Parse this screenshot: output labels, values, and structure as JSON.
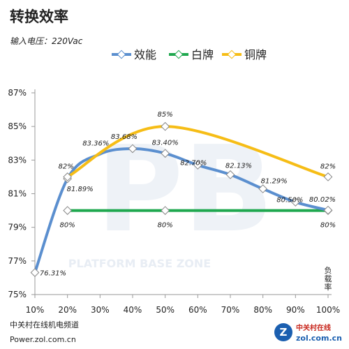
{
  "header": {
    "title": "转换效率",
    "subtitle": "输入电压：220Vac"
  },
  "footer": {
    "line1": "中关村在线机电频道",
    "line2": "Power.zol.com.cn",
    "logo_text_top": "中关村在线",
    "logo_text_bottom": "zol.com.cn",
    "logo_letter": "Z"
  },
  "watermark": {
    "text": "PLATFORM BASE ZONE",
    "big": "PB"
  },
  "chart_data": {
    "type": "line",
    "x": [
      10,
      20,
      30,
      40,
      50,
      60,
      70,
      80,
      90,
      100
    ],
    "categories": [
      "10%",
      "20%",
      "30%",
      "40%",
      "50%",
      "60%",
      "70%",
      "80%",
      "90%",
      "100%"
    ],
    "xlabel": "负载率",
    "ylabel": "",
    "ylim": [
      75,
      87
    ],
    "yticks": [
      75,
      77,
      79,
      81,
      83,
      85,
      87
    ],
    "ytick_labels": [
      "75%",
      "77%",
      "79%",
      "81%",
      "83%",
      "85%",
      "87%"
    ],
    "grid": false,
    "legend": "top-center",
    "series": [
      {
        "name": "效能",
        "color": "#5b8fcf",
        "x": [
          10,
          20,
          30,
          40,
          50,
          60,
          70,
          80,
          90,
          100
        ],
        "values": [
          76.31,
          81.89,
          83.36,
          83.68,
          83.4,
          82.7,
          82.13,
          81.29,
          80.5,
          80.02
        ],
        "marked_x": [
          10,
          20,
          40,
          50,
          60,
          70,
          80,
          90,
          100
        ],
        "labels": [
          "76.31%",
          "81.89%",
          "83.36%",
          "83.68%",
          "83.40%",
          "82.70%",
          "82.13%",
          "81.29%",
          "80.50%",
          "80.02%"
        ],
        "label_x": [
          10,
          20,
          30,
          40,
          50,
          60,
          70,
          80,
          90,
          100
        ]
      },
      {
        "name": "白牌",
        "color": "#1fa84f",
        "x": [
          20,
          50,
          100
        ],
        "values": [
          80,
          80,
          80
        ],
        "marked_x": [
          20,
          50,
          100
        ],
        "labels": [
          "80%",
          "80%",
          "80%"
        ],
        "label_x": [
          20,
          50,
          100
        ]
      },
      {
        "name": "铜牌",
        "color": "#f6bd16",
        "x": [
          20,
          50,
          100
        ],
        "values": [
          82,
          85,
          82
        ],
        "marked_x": [
          20,
          50,
          100
        ],
        "labels": [
          "82%",
          "85%",
          "82%"
        ],
        "label_x": [
          20,
          50,
          100
        ]
      }
    ]
  }
}
